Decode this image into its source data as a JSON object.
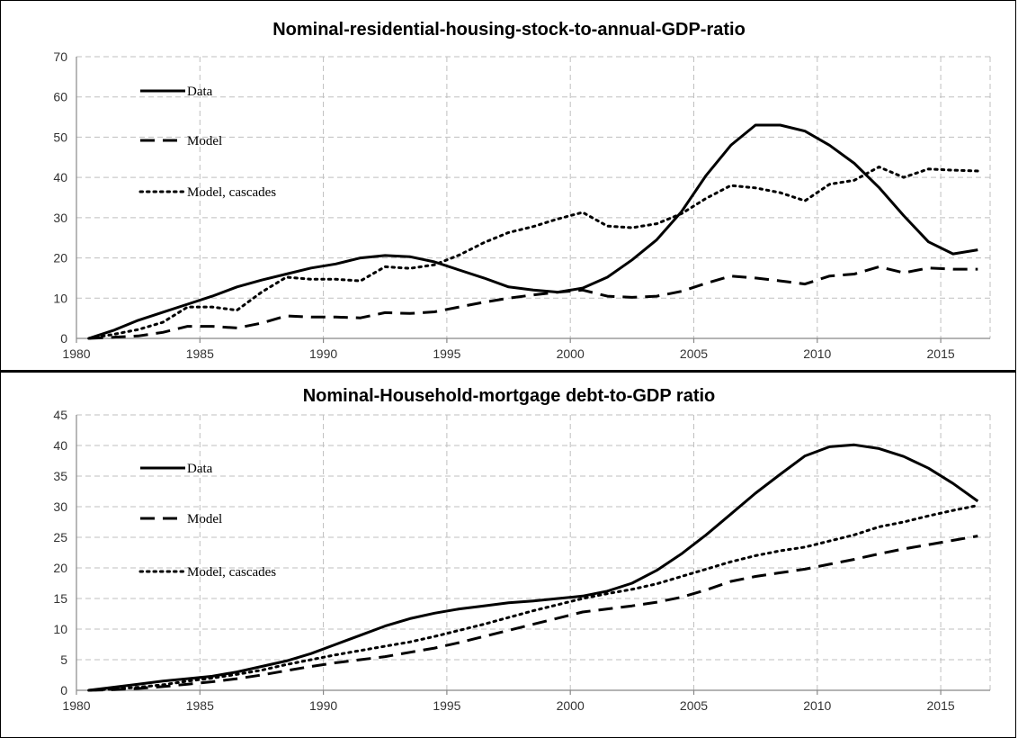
{
  "chart_data": [
    {
      "type": "line",
      "title": "Nominal-residential-housing-stock-to-annual-GDP-ratio",
      "xlabel": "",
      "ylabel": "",
      "xlim": [
        1980,
        2017
      ],
      "ylim": [
        0,
        70
      ],
      "x_ticks": [
        1980,
        1985,
        1990,
        1995,
        2000,
        2005,
        2010,
        2015
      ],
      "y_ticks": [
        0,
        10,
        20,
        30,
        40,
        50,
        60,
        70
      ],
      "grid": true,
      "legend_position": "top-left",
      "series": [
        {
          "name": "Data",
          "style": "solid",
          "x": [
            1980.5,
            1981.5,
            1982.5,
            1983.5,
            1984.5,
            1985.5,
            1986.5,
            1987.5,
            1988.5,
            1989.5,
            1990.5,
            1991.5,
            1992.5,
            1993.5,
            1994.5,
            1995.5,
            1996.5,
            1997.5,
            1998.5,
            1999.5,
            2000.5,
            2001.5,
            2002.5,
            2003.5,
            2004.5,
            2005.5,
            2006.5,
            2007.5,
            2008.5,
            2009.5,
            2010.5,
            2011.5,
            2012.5,
            2013.5,
            2014.5,
            2015.5,
            2016.5
          ],
          "y": [
            0,
            2,
            4.5,
            6.5,
            8.5,
            10.5,
            12.8,
            14.5,
            16,
            17.5,
            18.5,
            20,
            20.6,
            20.3,
            19,
            17,
            15,
            12.8,
            12,
            11.5,
            12.5,
            15.2,
            19.5,
            24.5,
            31.5,
            40.5,
            48,
            53,
            53,
            51.5,
            48,
            43.5,
            37.5,
            30.5,
            24,
            21,
            22
          ]
        },
        {
          "name": "Model",
          "style": "dashed",
          "x": [
            1980.5,
            1981.5,
            1982.5,
            1983.5,
            1984.5,
            1985.5,
            1986.5,
            1987.5,
            1988.5,
            1989.5,
            1990.5,
            1991.5,
            1992.5,
            1993.5,
            1994.5,
            1995.5,
            1996.5,
            1997.5,
            1998.5,
            1999.5,
            2000.5,
            2001.5,
            2002.5,
            2003.5,
            2004.5,
            2005.5,
            2006.5,
            2007.5,
            2008.5,
            2009.5,
            2010.5,
            2011.5,
            2012.5,
            2013.5,
            2014.5,
            2015.5,
            2016.5
          ],
          "y": [
            0,
            0.3,
            0.6,
            1.5,
            3,
            3,
            2.6,
            3.8,
            5.6,
            5.3,
            5.3,
            5.1,
            6.4,
            6.2,
            6.6,
            7.8,
            9,
            10,
            10.8,
            11.5,
            12,
            10.5,
            10.2,
            10.5,
            11.7,
            13.7,
            15.5,
            15,
            14.3,
            13.5,
            15.5,
            16,
            17.8,
            16.3,
            17.5,
            17.2,
            17.2
          ]
        },
        {
          "name": "Model, cascades",
          "style": "dotted",
          "x": [
            1980.5,
            1981.5,
            1982.5,
            1983.5,
            1984.5,
            1985.5,
            1986.5,
            1987.5,
            1988.5,
            1989.5,
            1990.5,
            1991.5,
            1992.5,
            1993.5,
            1994.5,
            1995.5,
            1996.5,
            1997.5,
            1998.5,
            1999.5,
            2000.5,
            2001.5,
            2002.5,
            2003.5,
            2004.5,
            2005.5,
            2006.5,
            2007.5,
            2008.5,
            2009.5,
            2010.5,
            2011.5,
            2012.5,
            2013.5,
            2014.5,
            2015.5,
            2016.5
          ],
          "y": [
            0,
            1,
            2.2,
            4,
            7.8,
            7.8,
            7,
            11.5,
            15.2,
            14.7,
            14.7,
            14.3,
            17.8,
            17.4,
            18.3,
            20.7,
            23.8,
            26.3,
            27.8,
            29.7,
            31.3,
            27.9,
            27.5,
            28.5,
            31,
            34.8,
            38,
            37.4,
            36.2,
            34.2,
            38.3,
            39.3,
            42.6,
            40,
            42.1,
            41.8,
            41.6
          ]
        }
      ]
    },
    {
      "type": "line",
      "title": "Nominal-Household-mortgage debt-to-GDP ratio",
      "xlabel": "",
      "ylabel": "",
      "xlim": [
        1980,
        2017
      ],
      "ylim": [
        0,
        45
      ],
      "x_ticks": [
        1980,
        1985,
        1990,
        1995,
        2000,
        2005,
        2010,
        2015
      ],
      "y_ticks": [
        0,
        5,
        10,
        15,
        20,
        25,
        30,
        35,
        40,
        45
      ],
      "grid": true,
      "legend_position": "top-left",
      "series": [
        {
          "name": "Data",
          "style": "solid",
          "x": [
            1980.5,
            1981.5,
            1982.5,
            1983.5,
            1984.5,
            1985.5,
            1986.5,
            1987.5,
            1988.5,
            1989.5,
            1990.5,
            1991.5,
            1992.5,
            1993.5,
            1994.5,
            1995.5,
            1996.5,
            1997.5,
            1998.5,
            1999.5,
            2000.5,
            2001.5,
            2002.5,
            2003.5,
            2004.5,
            2005.5,
            2006.5,
            2007.5,
            2008.5,
            2009.5,
            2010.5,
            2011.5,
            2012.5,
            2013.5,
            2014.5,
            2015.5,
            2016.5
          ],
          "y": [
            0,
            0.5,
            1,
            1.5,
            1.9,
            2.3,
            3,
            3.9,
            4.8,
            6,
            7.5,
            9,
            10.5,
            11.7,
            12.6,
            13.3,
            13.8,
            14.3,
            14.6,
            15,
            15.4,
            16.2,
            17.5,
            19.6,
            22.3,
            25.4,
            28.8,
            32.2,
            35.3,
            38.3,
            39.8,
            40.1,
            39.5,
            38.2,
            36.3,
            33.8,
            30.9
          ]
        },
        {
          "name": "Model",
          "style": "dashed",
          "x": [
            1980.5,
            1981.5,
            1982.5,
            1983.5,
            1984.5,
            1985.5,
            1986.5,
            1987.5,
            1988.5,
            1989.5,
            1990.5,
            1991.5,
            1992.5,
            1993.5,
            1994.5,
            1995.5,
            1996.5,
            1997.5,
            1998.5,
            1999.5,
            2000.5,
            2001.5,
            2002.5,
            2003.5,
            2004.5,
            2005.5,
            2006.5,
            2007.5,
            2008.5,
            2009.5,
            2010.5,
            2011.5,
            2012.5,
            2013.5,
            2014.5,
            2015.5,
            2016.5
          ],
          "y": [
            0,
            0.1,
            0.3,
            0.6,
            1,
            1.4,
            1.9,
            2.5,
            3.2,
            3.9,
            4.5,
            5,
            5.5,
            6.2,
            6.9,
            7.8,
            8.8,
            9.8,
            10.8,
            11.8,
            12.8,
            13.3,
            13.8,
            14.4,
            15.2,
            16.4,
            17.8,
            18.6,
            19.2,
            19.8,
            20.6,
            21.4,
            22.3,
            23.1,
            23.8,
            24.5,
            25.2
          ]
        },
        {
          "name": "Model, cascades",
          "style": "dotted",
          "x": [
            1980.5,
            1981.5,
            1982.5,
            1983.5,
            1984.5,
            1985.5,
            1986.5,
            1987.5,
            1988.5,
            1989.5,
            1990.5,
            1991.5,
            1992.5,
            1993.5,
            1994.5,
            1995.5,
            1996.5,
            1997.5,
            1998.5,
            1999.5,
            2000.5,
            2001.5,
            2002.5,
            2003.5,
            2004.5,
            2005.5,
            2006.5,
            2007.5,
            2008.5,
            2009.5,
            2010.5,
            2011.5,
            2012.5,
            2013.5,
            2014.5,
            2015.5,
            2016.5
          ],
          "y": [
            0,
            0.2,
            0.5,
            0.9,
            1.5,
            2,
            2.6,
            3.3,
            4.2,
            5,
            5.8,
            6.5,
            7.2,
            7.9,
            8.8,
            9.8,
            10.8,
            11.9,
            13,
            14,
            15,
            15.8,
            16.5,
            17.4,
            18.6,
            19.8,
            21,
            22,
            22.8,
            23.4,
            24.4,
            25.4,
            26.7,
            27.5,
            28.5,
            29.4,
            30.2
          ]
        }
      ]
    }
  ]
}
